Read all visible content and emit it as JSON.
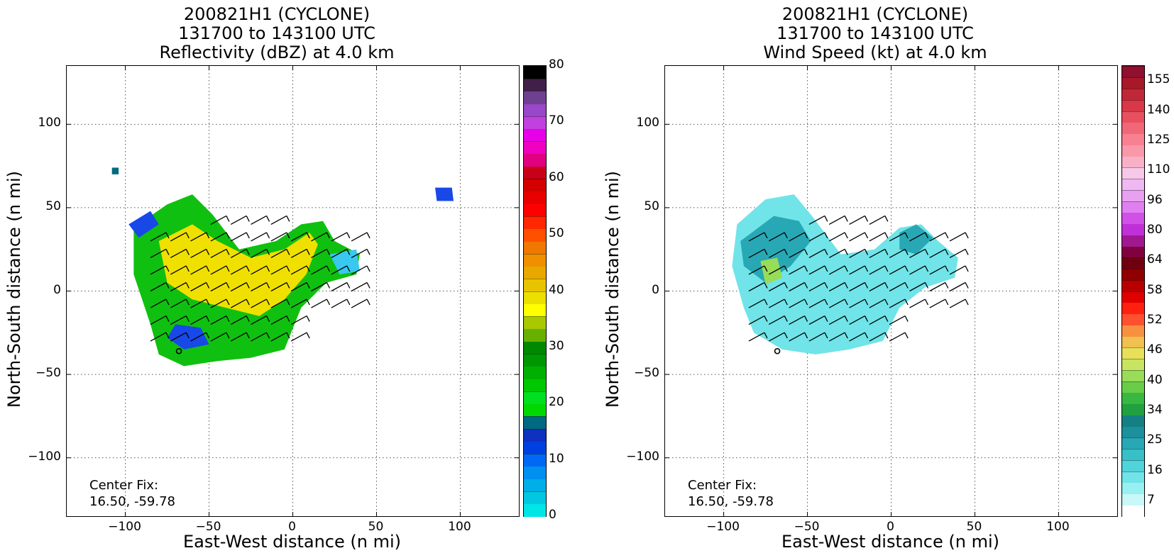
{
  "chart_data": [
    {
      "type": "heatmap",
      "title_lines": [
        "200821H1 (CYCLONE)",
        "131700 to 143100 UTC",
        "Reflectivity (dBZ) at 4.0 km"
      ],
      "xlabel": "East-West distance (n mi)",
      "ylabel": "North-South distance (n mi)",
      "xlim": [
        -135,
        135
      ],
      "ylim": [
        -135,
        135
      ],
      "xticks": [
        -100,
        -50,
        0,
        50,
        100
      ],
      "yticks": [
        -100,
        -50,
        0,
        50,
        100
      ],
      "grid": true,
      "center_fix_label": "Center Fix:",
      "center_fix_value": "16.50, -59.78",
      "colorbar": {
        "min": 0,
        "max": 80,
        "tick_labels": [
          "0",
          "10",
          "20",
          "30",
          "40",
          "50",
          "60",
          "70",
          "80"
        ],
        "tick_values": [
          0,
          10,
          20,
          30,
          40,
          50,
          60,
          70,
          80
        ],
        "colors": [
          "#00e5e5",
          "#00c8e0",
          "#00aee8",
          "#0090f0",
          "#0068f5",
          "#0040e0",
          "#1030c0",
          "#006a80",
          "#00d800",
          "#00e020",
          "#00c800",
          "#00b000",
          "#009800",
          "#008800",
          "#68b000",
          "#a8c800",
          "#ffff00",
          "#ece000",
          "#e8c400",
          "#e8a800",
          "#f09000",
          "#f07800",
          "#ff5000",
          "#ff2800",
          "#ff0000",
          "#e80000",
          "#d40000",
          "#c80018",
          "#e00080",
          "#f000c0",
          "#e800e8",
          "#c040e0",
          "#9848c8",
          "#704090",
          "#402048",
          "#000000"
        ]
      },
      "annotations": [
        "Center Fix:",
        "16.50, -59.78"
      ]
    },
    {
      "type": "heatmap",
      "title_lines": [
        "200821H1 (CYCLONE)",
        "131700 to 143100 UTC",
        "Wind Speed (kt) at 4.0 km"
      ],
      "xlabel": "East-West distance (n mi)",
      "ylabel": "North-South distance (n mi)",
      "xlim": [
        -135,
        135
      ],
      "ylim": [
        -135,
        135
      ],
      "xticks": [
        -100,
        -50,
        0,
        50,
        100
      ],
      "yticks": [
        -100,
        -50,
        0,
        50,
        100
      ],
      "grid": true,
      "center_fix_label": "Center Fix:",
      "center_fix_value": "16.50, -59.78",
      "colorbar": {
        "tick_labels": [
          "7",
          "16",
          "25",
          "34",
          "40",
          "46",
          "52",
          "58",
          "64",
          "80",
          "96",
          "110",
          "125",
          "140",
          "155"
        ],
        "colors": [
          "#ffffff",
          "#c8f8f8",
          "#98f0f0",
          "#70e4e8",
          "#50d4dc",
          "#38c0c8",
          "#28a8b4",
          "#1c909c",
          "#148084",
          "#20a040",
          "#38b840",
          "#68cc48",
          "#98dc58",
          "#c8e460",
          "#e8e058",
          "#f0c050",
          "#f89040",
          "#ff5030",
          "#ff2010",
          "#e00000",
          "#b80000",
          "#900000",
          "#700010",
          "#800040",
          "#a01890",
          "#c030d8",
          "#d050e8",
          "#e080f0",
          "#e8a0f0",
          "#f0b8f0",
          "#f8c8e8",
          "#f8b0c8",
          "#f898a8",
          "#f88090",
          "#f06878",
          "#e85060",
          "#d83848",
          "#c02838",
          "#a81828",
          "#901030"
        ]
      },
      "annotations": [
        "Center Fix:",
        "16.50, -59.78"
      ]
    }
  ]
}
